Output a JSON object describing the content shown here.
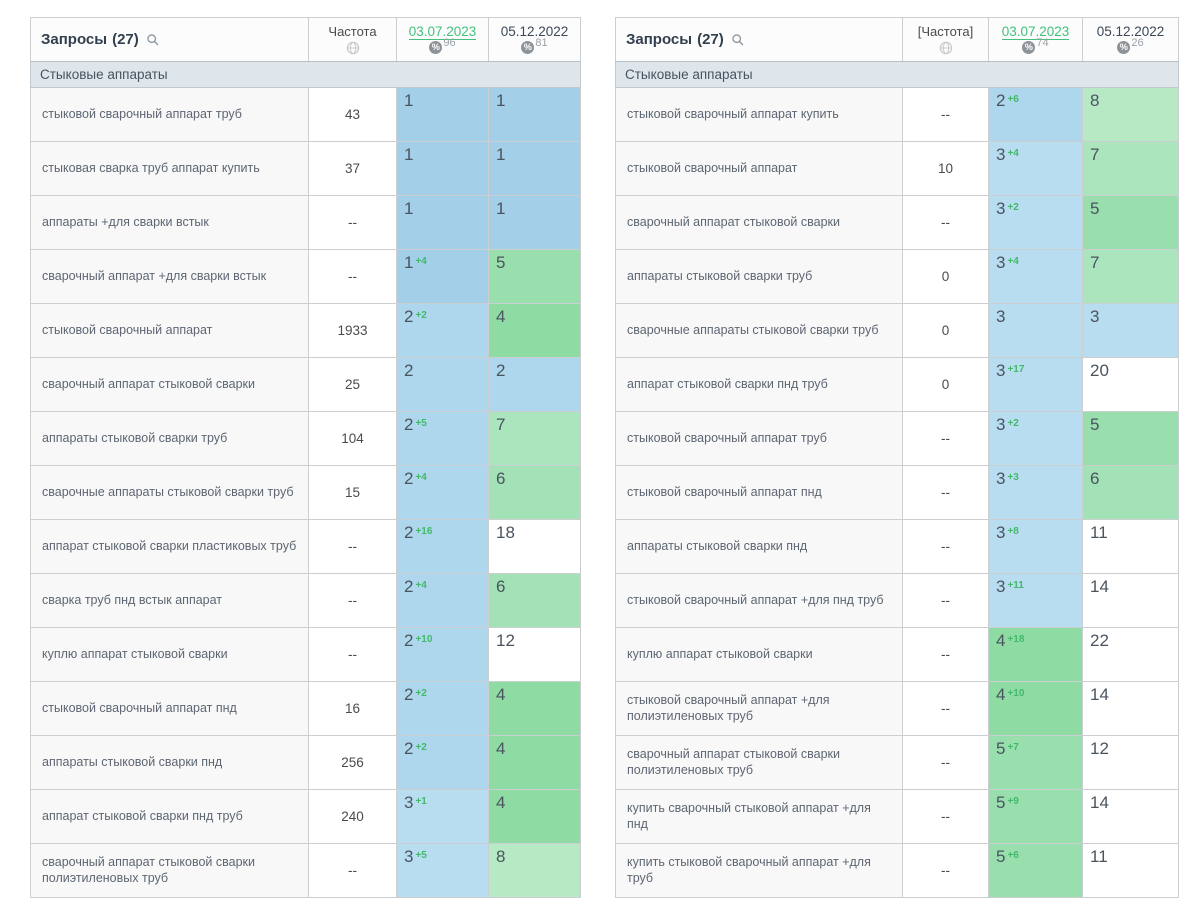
{
  "palette": {
    "positions": {
      "1": "#a3cfe9",
      "2": "#aed6ed",
      "3": "#b8ddf1",
      "4": "#8fdba4",
      "5": "#99dfae",
      "6": "#a2e2b6",
      "7": "#abe5bd",
      "8": "#b7e9c5",
      "default": "#ffffff"
    },
    "delta_up": "#44b86a",
    "selected_date_link": "#43c17c"
  },
  "tables": [
    {
      "title": "Запросы",
      "count": "(27)",
      "frequency_header": "Частота",
      "group_label": "Стыковые аппараты",
      "date_columns": [
        {
          "label": "03.07.2023",
          "visibility": "96",
          "selected": true
        },
        {
          "label": "05.12.2022",
          "visibility": "81",
          "selected": false
        }
      ],
      "rows": [
        {
          "query": "стыковой сварочный аппарат труб",
          "freq": "43",
          "pos": "1",
          "delta": "",
          "old": "1"
        },
        {
          "query": "стыковая сварка труб аппарат купить",
          "freq": "37",
          "pos": "1",
          "delta": "",
          "old": "1"
        },
        {
          "query": "аппараты +для сварки встык",
          "freq": "--",
          "pos": "1",
          "delta": "",
          "old": "1"
        },
        {
          "query": "сварочный аппарат +для сварки встык",
          "freq": "--",
          "pos": "1",
          "delta": "+4",
          "old": "5"
        },
        {
          "query": "стыковой сварочный аппарат",
          "freq": "1933",
          "pos": "2",
          "delta": "+2",
          "old": "4"
        },
        {
          "query": "сварочный аппарат стыковой сварки",
          "freq": "25",
          "pos": "2",
          "delta": "",
          "old": "2"
        },
        {
          "query": "аппараты стыковой сварки труб",
          "freq": "104",
          "pos": "2",
          "delta": "+5",
          "old": "7"
        },
        {
          "query": "сварочные аппараты стыковой сварки труб",
          "freq": "15",
          "pos": "2",
          "delta": "+4",
          "old": "6"
        },
        {
          "query": "аппарат стыковой сварки пластиковых труб",
          "freq": "--",
          "pos": "2",
          "delta": "+16",
          "old": "18"
        },
        {
          "query": "сварка труб пнд встык аппарат",
          "freq": "--",
          "pos": "2",
          "delta": "+4",
          "old": "6"
        },
        {
          "query": "куплю аппарат стыковой сварки",
          "freq": "--",
          "pos": "2",
          "delta": "+10",
          "old": "12"
        },
        {
          "query": "стыковой сварочный аппарат пнд",
          "freq": "16",
          "pos": "2",
          "delta": "+2",
          "old": "4"
        },
        {
          "query": "аппараты стыковой сварки пнд",
          "freq": "256",
          "pos": "2",
          "delta": "+2",
          "old": "4"
        },
        {
          "query": "аппарат стыковой сварки пнд труб",
          "freq": "240",
          "pos": "3",
          "delta": "+1",
          "old": "4"
        },
        {
          "query": "сварочный аппарат стыковой сварки полиэтиленовых труб",
          "freq": "--",
          "pos": "3",
          "delta": "+5",
          "old": "8"
        }
      ]
    },
    {
      "title": "Запросы",
      "count": "(27)",
      "frequency_header": "[Частота]",
      "group_label": "Стыковые аппараты",
      "date_columns": [
        {
          "label": "03.07.2023",
          "visibility": "74",
          "selected": true
        },
        {
          "label": "05.12.2022",
          "visibility": "26",
          "selected": false
        }
      ],
      "rows": [
        {
          "query": "стыковой сварочный аппарат купить",
          "freq": "--",
          "pos": "2",
          "delta": "+6",
          "old": "8"
        },
        {
          "query": "стыковой сварочный аппарат",
          "freq": "10",
          "pos": "3",
          "delta": "+4",
          "old": "7"
        },
        {
          "query": "сварочный аппарат стыковой сварки",
          "freq": "--",
          "pos": "3",
          "delta": "+2",
          "old": "5"
        },
        {
          "query": "аппараты стыковой сварки труб",
          "freq": "0",
          "pos": "3",
          "delta": "+4",
          "old": "7"
        },
        {
          "query": "сварочные аппараты стыковой сварки труб",
          "freq": "0",
          "pos": "3",
          "delta": "",
          "old": "3"
        },
        {
          "query": "аппарат стыковой сварки пнд труб",
          "freq": "0",
          "pos": "3",
          "delta": "+17",
          "old": "20"
        },
        {
          "query": "стыковой сварочный аппарат труб",
          "freq": "--",
          "pos": "3",
          "delta": "+2",
          "old": "5"
        },
        {
          "query": "стыковой сварочный аппарат пнд",
          "freq": "--",
          "pos": "3",
          "delta": "+3",
          "old": "6"
        },
        {
          "query": "аппараты стыковой сварки пнд",
          "freq": "--",
          "pos": "3",
          "delta": "+8",
          "old": "11"
        },
        {
          "query": "стыковой сварочный аппарат +для пнд труб",
          "freq": "--",
          "pos": "3",
          "delta": "+11",
          "old": "14"
        },
        {
          "query": "куплю аппарат стыковой сварки",
          "freq": "--",
          "pos": "4",
          "delta": "+18",
          "old": "22"
        },
        {
          "query": "стыковой сварочный аппарат +для полиэтиленовых труб",
          "freq": "--",
          "pos": "4",
          "delta": "+10",
          "old": "14"
        },
        {
          "query": "сварочный аппарат стыковой сварки полиэтиленовых труб",
          "freq": "--",
          "pos": "5",
          "delta": "+7",
          "old": "12"
        },
        {
          "query": "купить сварочный стыковой аппарат +для пнд",
          "freq": "--",
          "pos": "5",
          "delta": "+9",
          "old": "14"
        },
        {
          "query": "купить стыковой сварочный аппарат +для труб",
          "freq": "--",
          "pos": "5",
          "delta": "+6",
          "old": "11"
        }
      ]
    }
  ]
}
